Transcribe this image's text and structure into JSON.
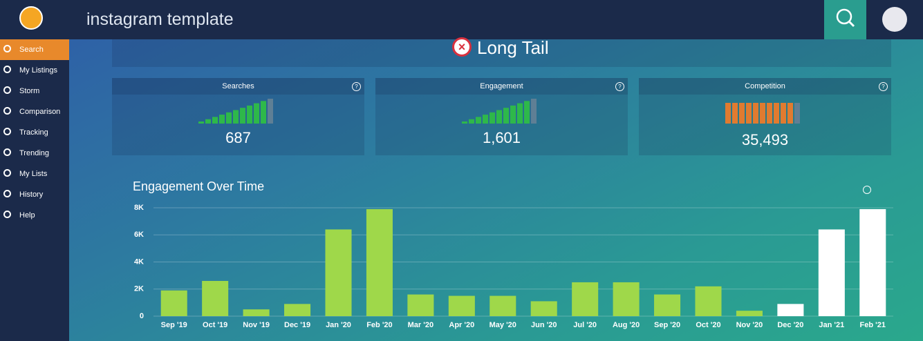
{
  "header": {
    "title": "instagram template"
  },
  "sidebar": {
    "items": [
      "Search",
      "My Listings",
      "Storm",
      "Comparison",
      "Tracking",
      "Trending",
      "My Lists",
      "History",
      "Help"
    ],
    "active": 0
  },
  "keyword": "Long Tail",
  "metrics": [
    {
      "label": "Searches",
      "value": "687"
    },
    {
      "label": "Engagement",
      "value": "1,601"
    },
    {
      "label": "Competition",
      "value": "35,493"
    }
  ],
  "chart_data": {
    "type": "bar",
    "title": "Engagement Over Time",
    "categories": [
      "Sep '19",
      "Oct '19",
      "Nov '19",
      "Dec '19",
      "Jan '20",
      "Feb '20",
      "Mar '20",
      "Apr '20",
      "May '20",
      "Jun '20",
      "Jul '20",
      "Aug '20",
      "Sep '20",
      "Oct '20",
      "Nov '20",
      "Dec '20",
      "Jan '21",
      "Feb '21"
    ],
    "values": [
      1900,
      2600,
      500,
      900,
      6400,
      7900,
      1600,
      1500,
      1500,
      1100,
      2500,
      2500,
      1600,
      2200,
      400,
      900,
      6400,
      7900
    ],
    "colors": [
      "#9fd84a",
      "#9fd84a",
      "#9fd84a",
      "#9fd84a",
      "#9fd84a",
      "#9fd84a",
      "#9fd84a",
      "#9fd84a",
      "#9fd84a",
      "#9fd84a",
      "#9fd84a",
      "#9fd84a",
      "#9fd84a",
      "#9fd84a",
      "#9fd84a",
      "#ffffff",
      "#ffffff",
      "#ffffff"
    ],
    "ylim": [
      0,
      8000
    ],
    "yticks": [
      0,
      {
        "value": 2000,
        "label": "2K"
      },
      {
        "value": 4000,
        "label": "4K"
      },
      {
        "value": 6000,
        "label": "6K"
      },
      {
        "value": 8000,
        "label": "8K"
      }
    ],
    "grid": true
  }
}
